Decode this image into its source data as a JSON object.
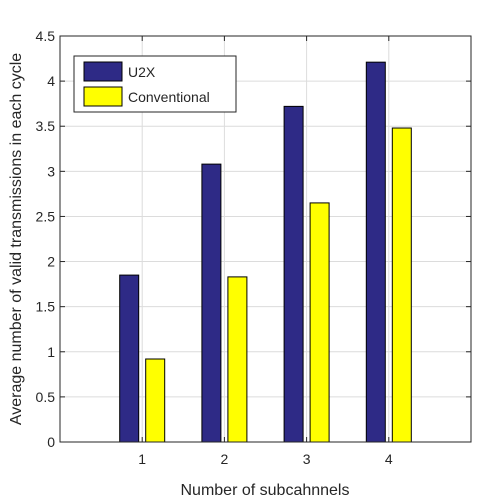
{
  "chart_data": {
    "type": "bar",
    "categories": [
      "1",
      "2",
      "3",
      "4"
    ],
    "series": [
      {
        "name": "U2X",
        "values": [
          1.85,
          3.08,
          3.72,
          4.21
        ],
        "color": "#2e2a86"
      },
      {
        "name": "Conventional",
        "values": [
          0.92,
          1.83,
          2.65,
          3.48
        ],
        "color": "#ffff00"
      }
    ],
    "xlabel": "Number of subcahnnels",
    "ylabel": "Average number of valid transmissions in each cycle",
    "ylim": [
      0,
      4.5
    ],
    "yticks": [
      0,
      0.5,
      1,
      1.5,
      2,
      2.5,
      3,
      3.5,
      4,
      4.5
    ],
    "ytick_labels": [
      "0",
      "0.5",
      "1",
      "1.5",
      "2",
      "2.5",
      "3",
      "3.5",
      "4",
      "4.5"
    ],
    "xlim": [
      0,
      5
    ],
    "grid": true,
    "legend_position": "top-left"
  }
}
